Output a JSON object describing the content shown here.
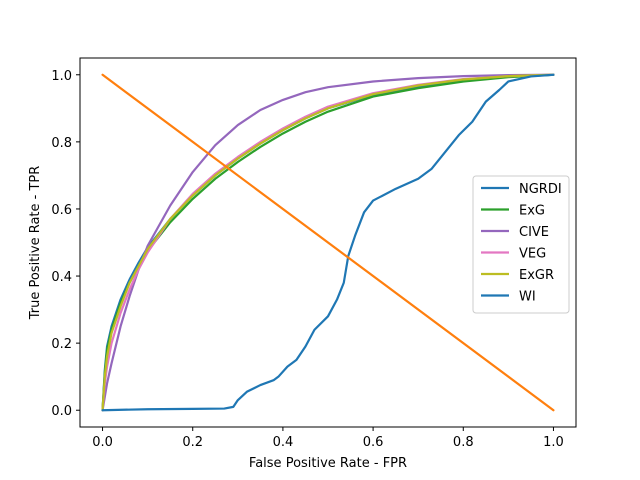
{
  "chart_data": {
    "type": "line",
    "xlabel": "False Positive Rate - FPR",
    "ylabel": "True Positive Rate - TPR",
    "xlim": [
      -0.05,
      1.05
    ],
    "ylim": [
      -0.05,
      1.05
    ],
    "x_ticks": [
      "0.0",
      "0.2",
      "0.4",
      "0.6",
      "0.8",
      "1.0"
    ],
    "y_ticks": [
      "0.0",
      "0.2",
      "0.4",
      "0.6",
      "0.8",
      "1.0"
    ],
    "grid": false,
    "legend_position": "center-right",
    "series": [
      {
        "name": "NGRDI",
        "color": "#1f77b4",
        "points": [
          [
            0,
            0
          ],
          [
            0.005,
            0.12
          ],
          [
            0.01,
            0.19
          ],
          [
            0.02,
            0.25
          ],
          [
            0.04,
            0.33
          ],
          [
            0.06,
            0.39
          ],
          [
            0.08,
            0.44
          ],
          [
            0.1,
            0.485
          ],
          [
            0.15,
            0.57
          ],
          [
            0.2,
            0.64
          ],
          [
            0.25,
            0.7
          ],
          [
            0.3,
            0.75
          ],
          [
            0.35,
            0.795
          ],
          [
            0.4,
            0.835
          ],
          [
            0.45,
            0.87
          ],
          [
            0.5,
            0.9
          ],
          [
            0.6,
            0.94
          ],
          [
            0.7,
            0.965
          ],
          [
            0.8,
            0.985
          ],
          [
            0.9,
            0.995
          ],
          [
            1,
            1
          ]
        ]
      },
      {
        "name": "ExG",
        "color": "#2ca02c",
        "points": [
          [
            0,
            0
          ],
          [
            0.005,
            0.11
          ],
          [
            0.01,
            0.18
          ],
          [
            0.02,
            0.24
          ],
          [
            0.04,
            0.32
          ],
          [
            0.06,
            0.38
          ],
          [
            0.08,
            0.43
          ],
          [
            0.1,
            0.475
          ],
          [
            0.15,
            0.56
          ],
          [
            0.2,
            0.63
          ],
          [
            0.25,
            0.69
          ],
          [
            0.3,
            0.74
          ],
          [
            0.35,
            0.785
          ],
          [
            0.4,
            0.825
          ],
          [
            0.45,
            0.86
          ],
          [
            0.5,
            0.89
          ],
          [
            0.6,
            0.935
          ],
          [
            0.7,
            0.96
          ],
          [
            0.8,
            0.98
          ],
          [
            0.9,
            0.993
          ],
          [
            1,
            1
          ]
        ]
      },
      {
        "name": "CIVE",
        "color": "#9467bd",
        "points": [
          [
            0,
            0
          ],
          [
            0.01,
            0.08
          ],
          [
            0.02,
            0.14
          ],
          [
            0.04,
            0.25
          ],
          [
            0.06,
            0.34
          ],
          [
            0.08,
            0.42
          ],
          [
            0.1,
            0.49
          ],
          [
            0.15,
            0.61
          ],
          [
            0.2,
            0.71
          ],
          [
            0.25,
            0.79
          ],
          [
            0.3,
            0.85
          ],
          [
            0.35,
            0.895
          ],
          [
            0.4,
            0.925
          ],
          [
            0.45,
            0.948
          ],
          [
            0.5,
            0.963
          ],
          [
            0.6,
            0.98
          ],
          [
            0.7,
            0.99
          ],
          [
            0.8,
            0.996
          ],
          [
            0.9,
            0.999
          ],
          [
            1,
            1
          ]
        ]
      },
      {
        "name": "VEG",
        "color": "#e377c2",
        "points": [
          [
            0,
            0
          ],
          [
            0.005,
            0.08
          ],
          [
            0.01,
            0.13
          ],
          [
            0.02,
            0.2
          ],
          [
            0.04,
            0.29
          ],
          [
            0.06,
            0.36
          ],
          [
            0.08,
            0.42
          ],
          [
            0.1,
            0.47
          ],
          [
            0.15,
            0.57
          ],
          [
            0.2,
            0.645
          ],
          [
            0.25,
            0.705
          ],
          [
            0.3,
            0.755
          ],
          [
            0.35,
            0.8
          ],
          [
            0.4,
            0.84
          ],
          [
            0.45,
            0.875
          ],
          [
            0.5,
            0.905
          ],
          [
            0.6,
            0.945
          ],
          [
            0.7,
            0.97
          ],
          [
            0.8,
            0.987
          ],
          [
            0.9,
            0.996
          ],
          [
            1,
            1
          ]
        ]
      },
      {
        "name": "ExGR",
        "color": "#bcbd22",
        "points": [
          [
            0,
            0
          ],
          [
            0.005,
            0.1
          ],
          [
            0.01,
            0.16
          ],
          [
            0.02,
            0.23
          ],
          [
            0.04,
            0.31
          ],
          [
            0.06,
            0.38
          ],
          [
            0.08,
            0.43
          ],
          [
            0.1,
            0.48
          ],
          [
            0.15,
            0.57
          ],
          [
            0.2,
            0.64
          ],
          [
            0.25,
            0.7
          ],
          [
            0.3,
            0.75
          ],
          [
            0.35,
            0.795
          ],
          [
            0.4,
            0.835
          ],
          [
            0.45,
            0.87
          ],
          [
            0.5,
            0.9
          ],
          [
            0.6,
            0.942
          ],
          [
            0.7,
            0.968
          ],
          [
            0.8,
            0.986
          ],
          [
            0.9,
            0.996
          ],
          [
            1,
            1
          ]
        ]
      },
      {
        "name": "WI",
        "color": "#1f77b4",
        "points": [
          [
            0,
            0
          ],
          [
            0.1,
            0.003
          ],
          [
            0.2,
            0.004
          ],
          [
            0.27,
            0.005
          ],
          [
            0.29,
            0.01
          ],
          [
            0.3,
            0.03
          ],
          [
            0.32,
            0.055
          ],
          [
            0.35,
            0.075
          ],
          [
            0.38,
            0.09
          ],
          [
            0.39,
            0.1
          ],
          [
            0.41,
            0.13
          ],
          [
            0.43,
            0.15
          ],
          [
            0.45,
            0.19
          ],
          [
            0.47,
            0.24
          ],
          [
            0.5,
            0.28
          ],
          [
            0.52,
            0.33
          ],
          [
            0.535,
            0.38
          ],
          [
            0.545,
            0.46
          ],
          [
            0.56,
            0.52
          ],
          [
            0.58,
            0.59
          ],
          [
            0.6,
            0.625
          ],
          [
            0.65,
            0.66
          ],
          [
            0.7,
            0.69
          ],
          [
            0.73,
            0.72
          ],
          [
            0.76,
            0.77
          ],
          [
            0.79,
            0.82
          ],
          [
            0.82,
            0.86
          ],
          [
            0.85,
            0.92
          ],
          [
            0.88,
            0.955
          ],
          [
            0.9,
            0.98
          ],
          [
            0.95,
            0.995
          ],
          [
            1,
            1
          ]
        ]
      },
      {
        "name": "",
        "color": "#ff7f0e",
        "points": [
          [
            0,
            1
          ],
          [
            1,
            0
          ]
        ]
      }
    ]
  }
}
